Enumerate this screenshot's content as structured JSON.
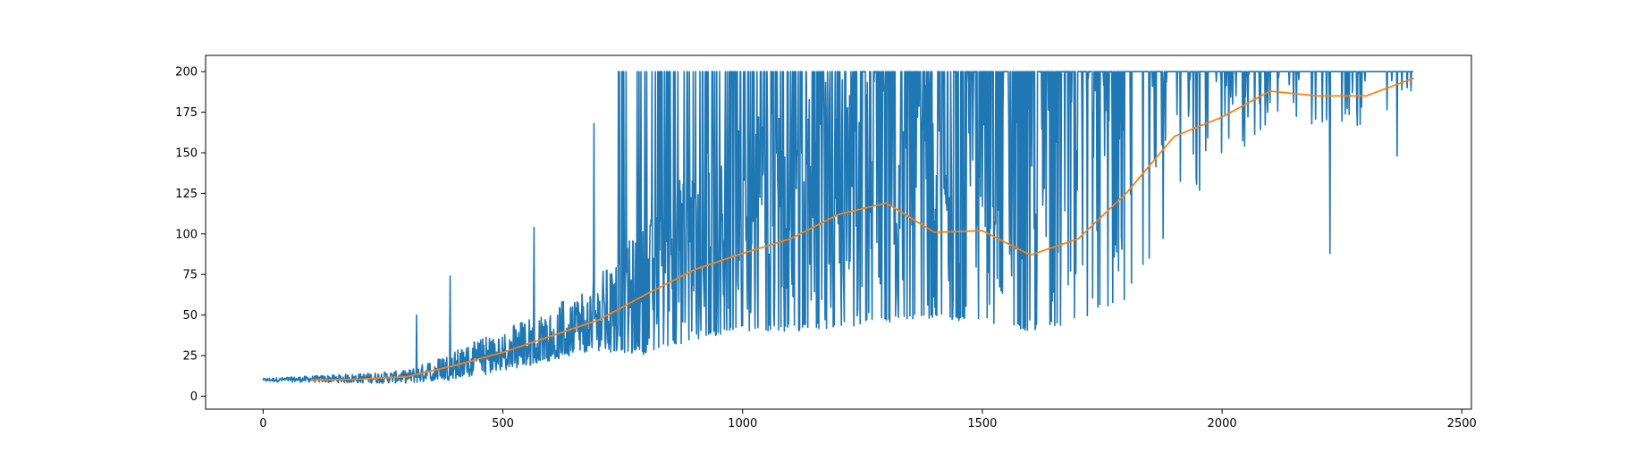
{
  "chart_data": {
    "type": "line",
    "title": "",
    "xlabel": "",
    "ylabel": "",
    "xlim": [
      -120,
      2520
    ],
    "ylim": [
      -8,
      210
    ],
    "grid": false,
    "x_ticks": [
      {
        "value": 0,
        "label": "0"
      },
      {
        "value": 500,
        "label": "500"
      },
      {
        "value": 1000,
        "label": "1000"
      },
      {
        "value": 1500,
        "label": "1500"
      },
      {
        "value": 2000,
        "label": "2000"
      },
      {
        "value": 2500,
        "label": "2500"
      }
    ],
    "y_ticks": [
      {
        "value": 0,
        "label": "0"
      },
      {
        "value": 25,
        "label": "25"
      },
      {
        "value": 50,
        "label": "50"
      },
      {
        "value": 75,
        "label": "75"
      },
      {
        "value": 100,
        "label": "100"
      },
      {
        "value": 125,
        "label": "125"
      },
      {
        "value": 150,
        "label": "150"
      },
      {
        "value": 175,
        "label": "175"
      },
      {
        "value": 200,
        "label": "200"
      }
    ],
    "series": [
      {
        "color": "#1f77b4",
        "episodes": 2400,
        "x_start": 0,
        "x_end": 2399,
        "y_max": 200,
        "trend_x": [
          0,
          100,
          200,
          300,
          400,
          500,
          600,
          700,
          800,
          900,
          1000,
          1100,
          1200,
          1300,
          1400,
          1500,
          1600,
          1700,
          1800,
          1900,
          2000,
          2100,
          2200,
          2300,
          2400
        ],
        "trend_y": [
          10,
          10.5,
          11,
          12,
          18,
          26,
          33,
          47,
          63,
          78,
          88,
          98,
          112,
          118,
          101,
          102,
          87,
          98,
          130,
          160,
          171,
          187,
          185,
          186,
          196
        ],
        "spread_y": [
          1,
          2,
          3,
          4,
          10,
          16,
          21,
          28,
          45,
          70,
          80,
          85,
          92,
          98,
          95,
          95,
          90,
          92,
          90,
          55,
          35,
          18,
          20,
          20,
          10
        ],
        "min_y": [
          8,
          8,
          8,
          8,
          10,
          15,
          22,
          28,
          25,
          35,
          40,
          40,
          42,
          45,
          48,
          45,
          40,
          45,
          60,
          85,
          100,
          115,
          95,
          125,
          150
        ],
        "spikes": [
          {
            "x": 320,
            "y": 50
          },
          {
            "x": 390,
            "y": 74
          },
          {
            "x": 565,
            "y": 104
          },
          {
            "x": 690,
            "y": 168
          },
          {
            "x": 748,
            "y": 200
          },
          {
            "x": 1190,
            "y": 46
          },
          {
            "x": 1610,
            "y": 41
          },
          {
            "x": 2225,
            "y": 88
          },
          {
            "x": 2365,
            "y": 148
          }
        ]
      },
      {
        "color": "#ff7f0e",
        "x": [
          100,
          200,
          300,
          400,
          500,
          600,
          700,
          800,
          900,
          1000,
          1100,
          1200,
          1300,
          1400,
          1500,
          1600,
          1700,
          1800,
          1900,
          2000,
          2100,
          2200,
          2300,
          2400
        ],
        "y": [
          10,
          10.5,
          12,
          19,
          27,
          37,
          47,
          63,
          78,
          88,
          97,
          112,
          119,
          101,
          102,
          87,
          97,
          125,
          160,
          172,
          188,
          185,
          185,
          196
        ]
      }
    ]
  }
}
